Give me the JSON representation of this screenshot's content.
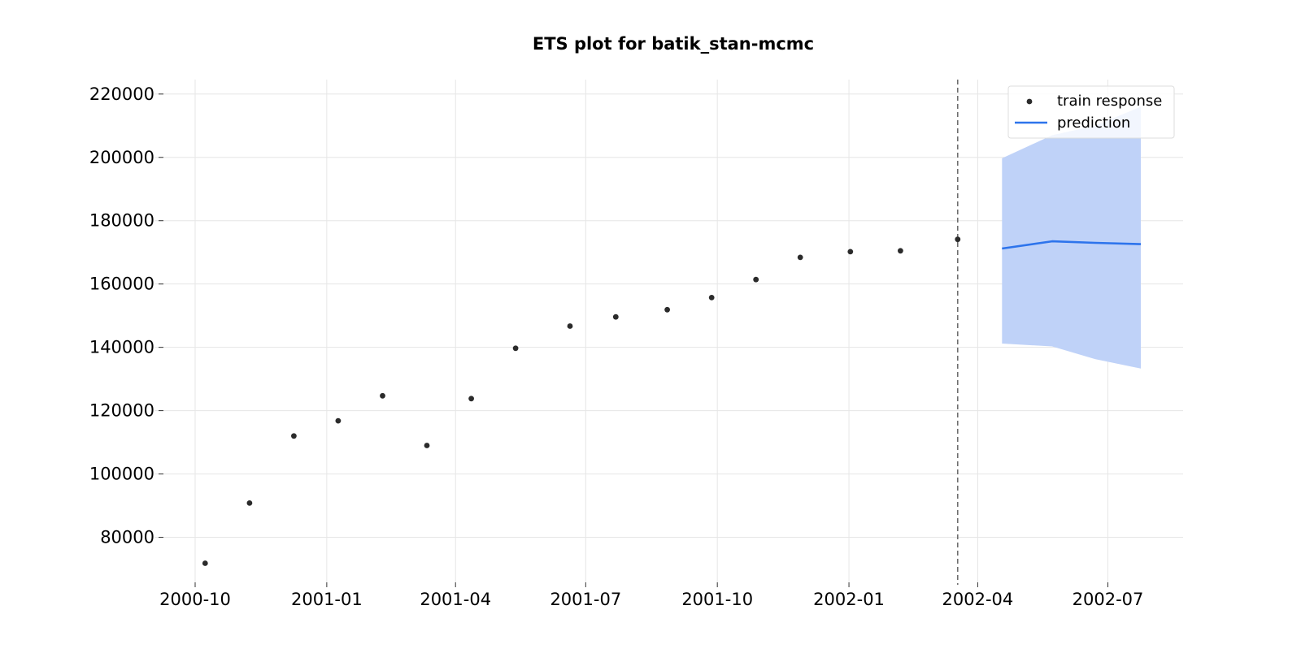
{
  "chart_data": {
    "type": "line",
    "title": "ETS plot for batik_stan-mcmc",
    "xlabel": "",
    "ylabel": "",
    "grid": true,
    "legend_position": "top-right",
    "x_tick_labels": [
      "2000-10",
      "2001-01",
      "2001-04",
      "2001-07",
      "2001-10",
      "2002-01",
      "2002-04",
      "2002-07"
    ],
    "y_tick_labels": [
      "80000",
      "100000",
      "120000",
      "140000",
      "160000",
      "180000",
      "200000",
      "220000"
    ],
    "xlim": [
      "2000-10-01",
      "2002-08-22"
    ],
    "ylim": [
      65000,
      222000
    ],
    "cutoff_date": "2002-03-18",
    "series": [
      {
        "name": "train response",
        "kind": "scatter",
        "color": "#2b2b2b",
        "x": [
          "2000-10-08",
          "2000-11-08",
          "2000-12-09",
          "2001-01-09",
          "2001-02-09",
          "2001-03-12",
          "2001-04-12",
          "2001-05-13",
          "2001-06-20",
          "2001-07-22",
          "2001-08-27",
          "2001-09-27",
          "2001-10-28",
          "2001-11-28",
          "2002-01-02",
          "2002-02-06",
          "2002-03-18"
        ],
        "y": [
          71800,
          90800,
          112000,
          116800,
          124700,
          109000,
          123800,
          139700,
          146700,
          149600,
          151900,
          155700,
          161400,
          168400,
          170200,
          170500,
          174100
        ]
      },
      {
        "name": "prediction",
        "kind": "line",
        "color": "#2d74ec",
        "x": [
          "2002-04-18",
          "2002-05-23",
          "2002-06-22",
          "2002-07-24"
        ],
        "y": [
          171200,
          173500,
          173000,
          172600
        ]
      },
      {
        "name": "",
        "kind": "band",
        "color": "#bfd2f8",
        "x": [
          "2002-04-18",
          "2002-05-23",
          "2002-06-22",
          "2002-07-24"
        ],
        "lower": [
          141200,
          140300,
          136300,
          133300
        ],
        "upper": [
          199700,
          207000,
          210000,
          216000
        ]
      }
    ]
  }
}
